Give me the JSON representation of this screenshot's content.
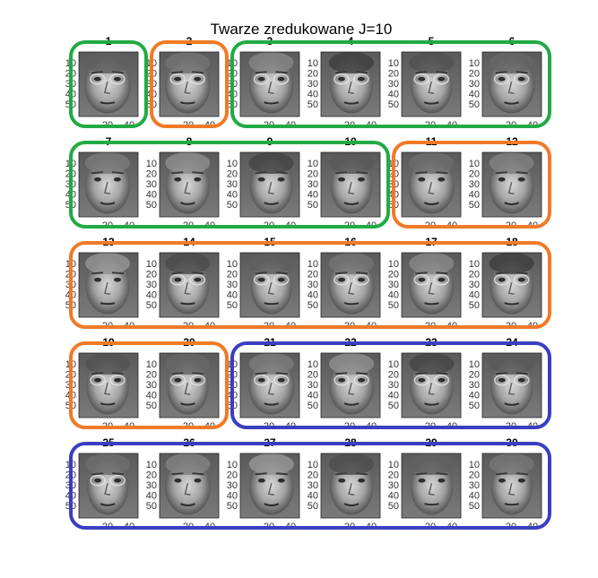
{
  "chart_data": {
    "type": "image-grid",
    "title": "Twarze zredukowane J=10",
    "rows": 5,
    "cols": 6,
    "panels": [
      {
        "label": "1"
      },
      {
        "label": "2"
      },
      {
        "label": "3"
      },
      {
        "label": "4"
      },
      {
        "label": "5"
      },
      {
        "label": "6"
      },
      {
        "label": "7"
      },
      {
        "label": "8"
      },
      {
        "label": "9"
      },
      {
        "label": "10"
      },
      {
        "label": "11"
      },
      {
        "label": "12"
      },
      {
        "label": "13"
      },
      {
        "label": "14"
      },
      {
        "label": "15"
      },
      {
        "label": "16"
      },
      {
        "label": "17"
      },
      {
        "label": "18"
      },
      {
        "label": "19"
      },
      {
        "label": "20"
      },
      {
        "label": "21"
      },
      {
        "label": "22"
      },
      {
        "label": "23"
      },
      {
        "label": "24"
      },
      {
        "label": "25"
      },
      {
        "label": "26"
      },
      {
        "label": "27"
      },
      {
        "label": "28"
      },
      {
        "label": "29"
      },
      {
        "label": "30"
      }
    ],
    "y_ticks": [
      "10",
      "20",
      "30",
      "40",
      "50"
    ],
    "x_ticks": [
      "20",
      "40"
    ],
    "colormap": "gray",
    "groups": [
      {
        "color": "#22aa44",
        "members": [
          1
        ]
      },
      {
        "color": "#f07a28",
        "members": [
          2
        ]
      },
      {
        "color": "#22aa44",
        "members": [
          3,
          4,
          5,
          6
        ]
      },
      {
        "color": "#22aa44",
        "members": [
          7,
          8,
          9,
          10
        ]
      },
      {
        "color": "#f07a28",
        "members": [
          11,
          12
        ]
      },
      {
        "color": "#f07a28",
        "members": [
          13,
          14,
          15,
          16,
          17,
          18
        ]
      },
      {
        "color": "#f07a28",
        "members": [
          19,
          20
        ]
      },
      {
        "color": "#3a3ec0",
        "members": [
          21,
          22,
          23,
          24
        ]
      },
      {
        "color": "#3a3ec0",
        "members": [
          25,
          26,
          27,
          28,
          29,
          30
        ]
      }
    ]
  }
}
